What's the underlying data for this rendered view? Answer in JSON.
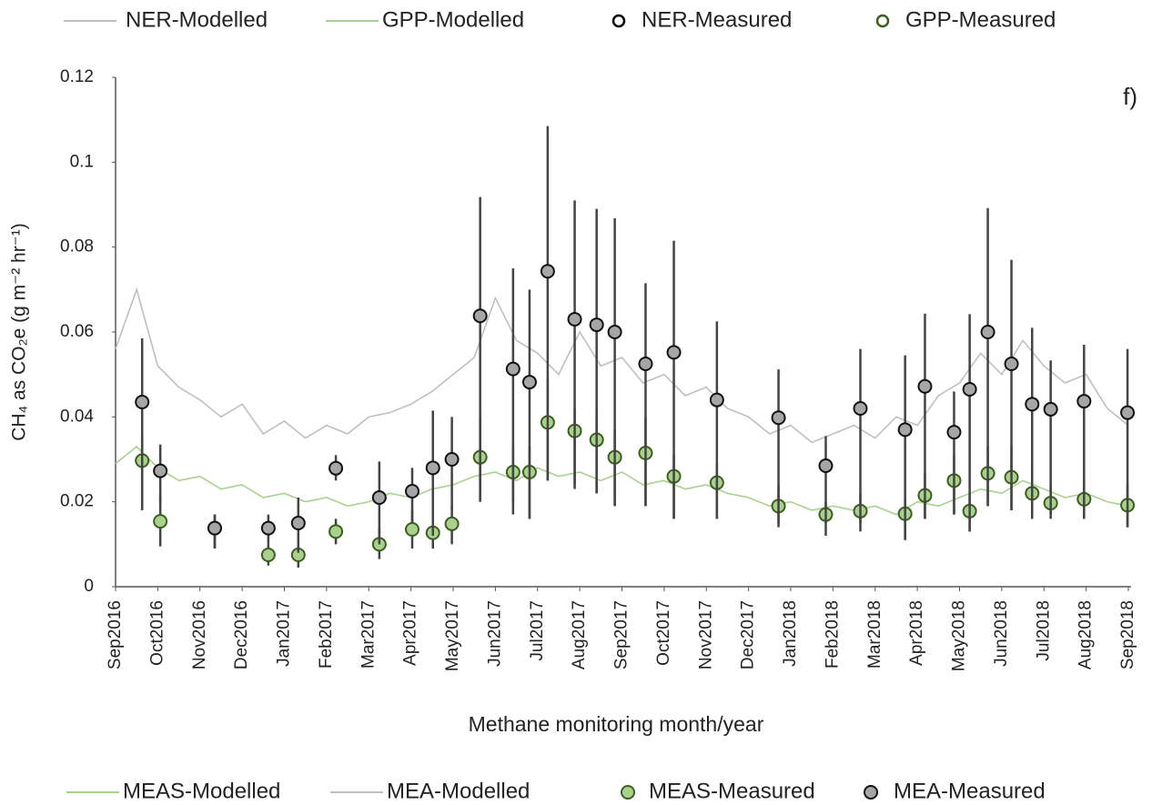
{
  "chart_data": {
    "type": "line",
    "annotation": "f)",
    "x_label": "Methane monitoring  month/year",
    "y_label": "CH₄ as CO₂e (g m⁻² hr⁻¹)",
    "xlim": [
      0,
      24
    ],
    "xticks": [
      {
        "value": 0,
        "label": "Sep2016"
      },
      {
        "value": 1,
        "label": "Oct2016"
      },
      {
        "value": 2,
        "label": "Nov2016"
      },
      {
        "value": 3,
        "label": "Dec2016"
      },
      {
        "value": 4,
        "label": "Jan2017"
      },
      {
        "value": 5,
        "label": "Feb2017"
      },
      {
        "value": 6,
        "label": "Mar2017"
      },
      {
        "value": 7,
        "label": "Apr2017"
      },
      {
        "value": 8,
        "label": "May2017"
      },
      {
        "value": 9,
        "label": "Jun2017"
      },
      {
        "value": 10,
        "label": "Jul2017"
      },
      {
        "value": 11,
        "label": "Aug2017"
      },
      {
        "value": 12,
        "label": "Sep2017"
      },
      {
        "value": 13,
        "label": "Oct2017"
      },
      {
        "value": 14,
        "label": "Nov2017"
      },
      {
        "value": 15,
        "label": "Dec2017"
      },
      {
        "value": 16,
        "label": "Jan2018"
      },
      {
        "value": 17,
        "label": "Feb2018"
      },
      {
        "value": 18,
        "label": "Mar2018"
      },
      {
        "value": 19,
        "label": "Apr2018"
      },
      {
        "value": 20,
        "label": "May2018"
      },
      {
        "value": 21,
        "label": "Jun2018"
      },
      {
        "value": 22,
        "label": "Jul2018"
      },
      {
        "value": 23,
        "label": "Aug2018"
      },
      {
        "value": 24,
        "label": "Sep2018"
      }
    ],
    "ylim": [
      0,
      0.12
    ],
    "yticks": [
      0,
      0.02,
      0.04,
      0.06,
      0.08,
      0.1,
      0.12
    ],
    "grid": false,
    "legend_top": [
      {
        "name": "NER-Modelled",
        "color": "#bfbfbf",
        "marker": "line"
      },
      {
        "name": "GPP-Modelled",
        "color": "#a9d18e",
        "marker": "line"
      },
      {
        "name": "NER-Measured",
        "color": "#000000",
        "marker": "hollow"
      },
      {
        "name": "GPP-Measured",
        "color": "#3b5e1f",
        "marker": "hollow"
      }
    ],
    "series": [
      {
        "name": "MEAS-Modelled",
        "color": "#a9d18e",
        "marker": "line",
        "x": [
          0,
          0.5,
          1,
          1.5,
          2,
          2.5,
          3,
          3.5,
          4,
          4.5,
          5,
          5.5,
          6,
          6.5,
          7,
          7.5,
          8,
          8.5,
          9,
          9.5,
          10,
          10.5,
          11,
          11.5,
          12,
          12.5,
          13,
          13.5,
          14,
          14.5,
          15,
          15.5,
          16,
          16.5,
          17,
          17.5,
          18,
          18.5,
          19,
          19.5,
          20,
          20.5,
          21,
          21.5,
          22,
          22.5,
          23,
          23.5,
          24
        ],
        "values": [
          0.029,
          0.033,
          0.028,
          0.025,
          0.026,
          0.023,
          0.024,
          0.021,
          0.022,
          0.02,
          0.021,
          0.019,
          0.02,
          0.022,
          0.021,
          0.023,
          0.024,
          0.026,
          0.027,
          0.025,
          0.028,
          0.026,
          0.027,
          0.025,
          0.027,
          0.024,
          0.025,
          0.023,
          0.024,
          0.022,
          0.021,
          0.019,
          0.02,
          0.018,
          0.019,
          0.018,
          0.019,
          0.017,
          0.02,
          0.019,
          0.021,
          0.023,
          0.022,
          0.025,
          0.023,
          0.021,
          0.022,
          0.02,
          0.019
        ]
      },
      {
        "name": "MEA-Modelled",
        "color": "#bfbfbf",
        "marker": "line",
        "x": [
          0,
          0.5,
          1,
          1.5,
          2,
          2.5,
          3,
          3.5,
          4,
          4.5,
          5,
          5.5,
          6,
          6.5,
          7,
          7.5,
          8,
          8.5,
          9,
          9.5,
          10,
          10.5,
          11,
          11.5,
          12,
          12.5,
          13,
          13.5,
          14,
          14.5,
          15,
          15.5,
          16,
          16.5,
          17,
          17.5,
          18,
          18.5,
          19,
          19.5,
          20,
          20.5,
          21,
          21.5,
          22,
          22.5,
          23,
          23.5,
          24
        ],
        "values": [
          0.056,
          0.07,
          0.052,
          0.047,
          0.044,
          0.04,
          0.043,
          0.036,
          0.039,
          0.035,
          0.038,
          0.036,
          0.04,
          0.041,
          0.043,
          0.046,
          0.05,
          0.054,
          0.068,
          0.058,
          0.055,
          0.05,
          0.06,
          0.052,
          0.054,
          0.048,
          0.05,
          0.045,
          0.047,
          0.042,
          0.04,
          0.036,
          0.038,
          0.034,
          0.036,
          0.038,
          0.035,
          0.04,
          0.038,
          0.045,
          0.048,
          0.055,
          0.05,
          0.058,
          0.052,
          0.048,
          0.05,
          0.042,
          0.038
        ]
      },
      {
        "name": "MEAS-Measured",
        "color": "#a9d18e",
        "edge": "#3b5e1f",
        "marker": "point",
        "x": [
          0.63,
          1.06,
          2.35,
          3.62,
          4.33,
          5.22,
          6.25,
          7.03,
          7.52,
          7.97,
          8.64,
          9.42,
          9.81,
          10.24,
          10.88,
          11.4,
          11.83,
          12.56,
          13.23,
          14.25,
          15.71,
          16.83,
          17.65,
          18.71,
          19.18,
          19.87,
          20.24,
          20.67,
          21.23,
          21.72,
          22.16,
          22.95,
          23.98
        ],
        "values": [
          0.0297,
          0.0154,
          0.0138,
          0.0075,
          0.0075,
          0.013,
          0.01,
          0.0135,
          0.0127,
          0.0148,
          0.0305,
          0.027,
          0.027,
          0.0387,
          0.0367,
          0.0346,
          0.0305,
          0.0315,
          0.026,
          0.0245,
          0.019,
          0.017,
          0.0178,
          0.0172,
          0.0215,
          0.025,
          0.0178,
          0.0267,
          0.0258,
          0.022,
          0.0197,
          0.0206,
          0.0192
        ],
        "lower": [
          0.018,
          0.0095,
          0.009,
          0.005,
          0.0045,
          0.01,
          0.0065,
          0.009,
          0.009,
          0.01,
          0.02,
          0.02,
          0.016,
          0.025,
          0.024,
          0.022,
          0.019,
          0.019,
          0.016,
          0.016,
          0.014,
          0.012,
          0.013,
          0.011,
          0.016,
          0.017,
          0.013,
          0.019,
          0.018,
          0.016,
          0.016,
          0.016,
          0.014
        ],
        "upper": [
          0.036,
          0.022,
          0.017,
          0.01,
          0.01,
          0.016,
          0.014,
          0.018,
          0.016,
          0.019,
          0.04,
          0.033,
          0.033,
          0.049,
          0.042,
          0.042,
          0.037,
          0.04,
          0.031,
          0.029,
          0.024,
          0.02,
          0.022,
          0.021,
          0.027,
          0.031,
          0.022,
          0.033,
          0.033,
          0.028,
          0.024,
          0.025,
          0.024
        ]
      },
      {
        "name": "MEA-Measured",
        "color": "#a6a6a6",
        "edge": "#111111",
        "marker": "point",
        "x": [
          0.63,
          1.06,
          2.35,
          3.62,
          4.33,
          5.22,
          6.25,
          7.03,
          7.52,
          7.97,
          8.64,
          9.42,
          9.81,
          10.24,
          10.88,
          11.4,
          11.83,
          12.56,
          13.23,
          14.25,
          15.71,
          16.83,
          17.65,
          18.71,
          19.18,
          19.87,
          20.24,
          20.67,
          21.23,
          21.72,
          22.16,
          22.95,
          23.98
        ],
        "values": [
          0.0435,
          0.0273,
          0.0138,
          0.0138,
          0.015,
          0.0279,
          0.021,
          0.0225,
          0.028,
          0.03,
          0.0638,
          0.0513,
          0.0482,
          0.0743,
          0.063,
          0.0617,
          0.06,
          0.0525,
          0.0552,
          0.044,
          0.0398,
          0.0285,
          0.042,
          0.037,
          0.0472,
          0.0364,
          0.0465,
          0.06,
          0.0525,
          0.043,
          0.0418,
          0.0437,
          0.041
        ],
        "lower": [
          0.018,
          0.02,
          0.009,
          0.01,
          0.008,
          0.025,
          0.01,
          0.015,
          0.012,
          0.018,
          0.02,
          0.017,
          0.016,
          0.025,
          0.023,
          0.022,
          0.019,
          0.019,
          0.016,
          0.016,
          0.015,
          0.015,
          0.015,
          0.011,
          0.016,
          0.017,
          0.013,
          0.019,
          0.018,
          0.016,
          0.017,
          0.016,
          0.014
        ],
        "upper": [
          0.0585,
          0.0335,
          0.017,
          0.017,
          0.021,
          0.031,
          0.0295,
          0.028,
          0.0415,
          0.04,
          0.0918,
          0.075,
          0.07,
          0.1085,
          0.091,
          0.089,
          0.0868,
          0.0715,
          0.0815,
          0.0625,
          0.0512,
          0.0355,
          0.056,
          0.0545,
          0.0643,
          0.046,
          0.0642,
          0.0892,
          0.077,
          0.061,
          0.0533,
          0.057,
          0.056
        ]
      }
    ]
  }
}
